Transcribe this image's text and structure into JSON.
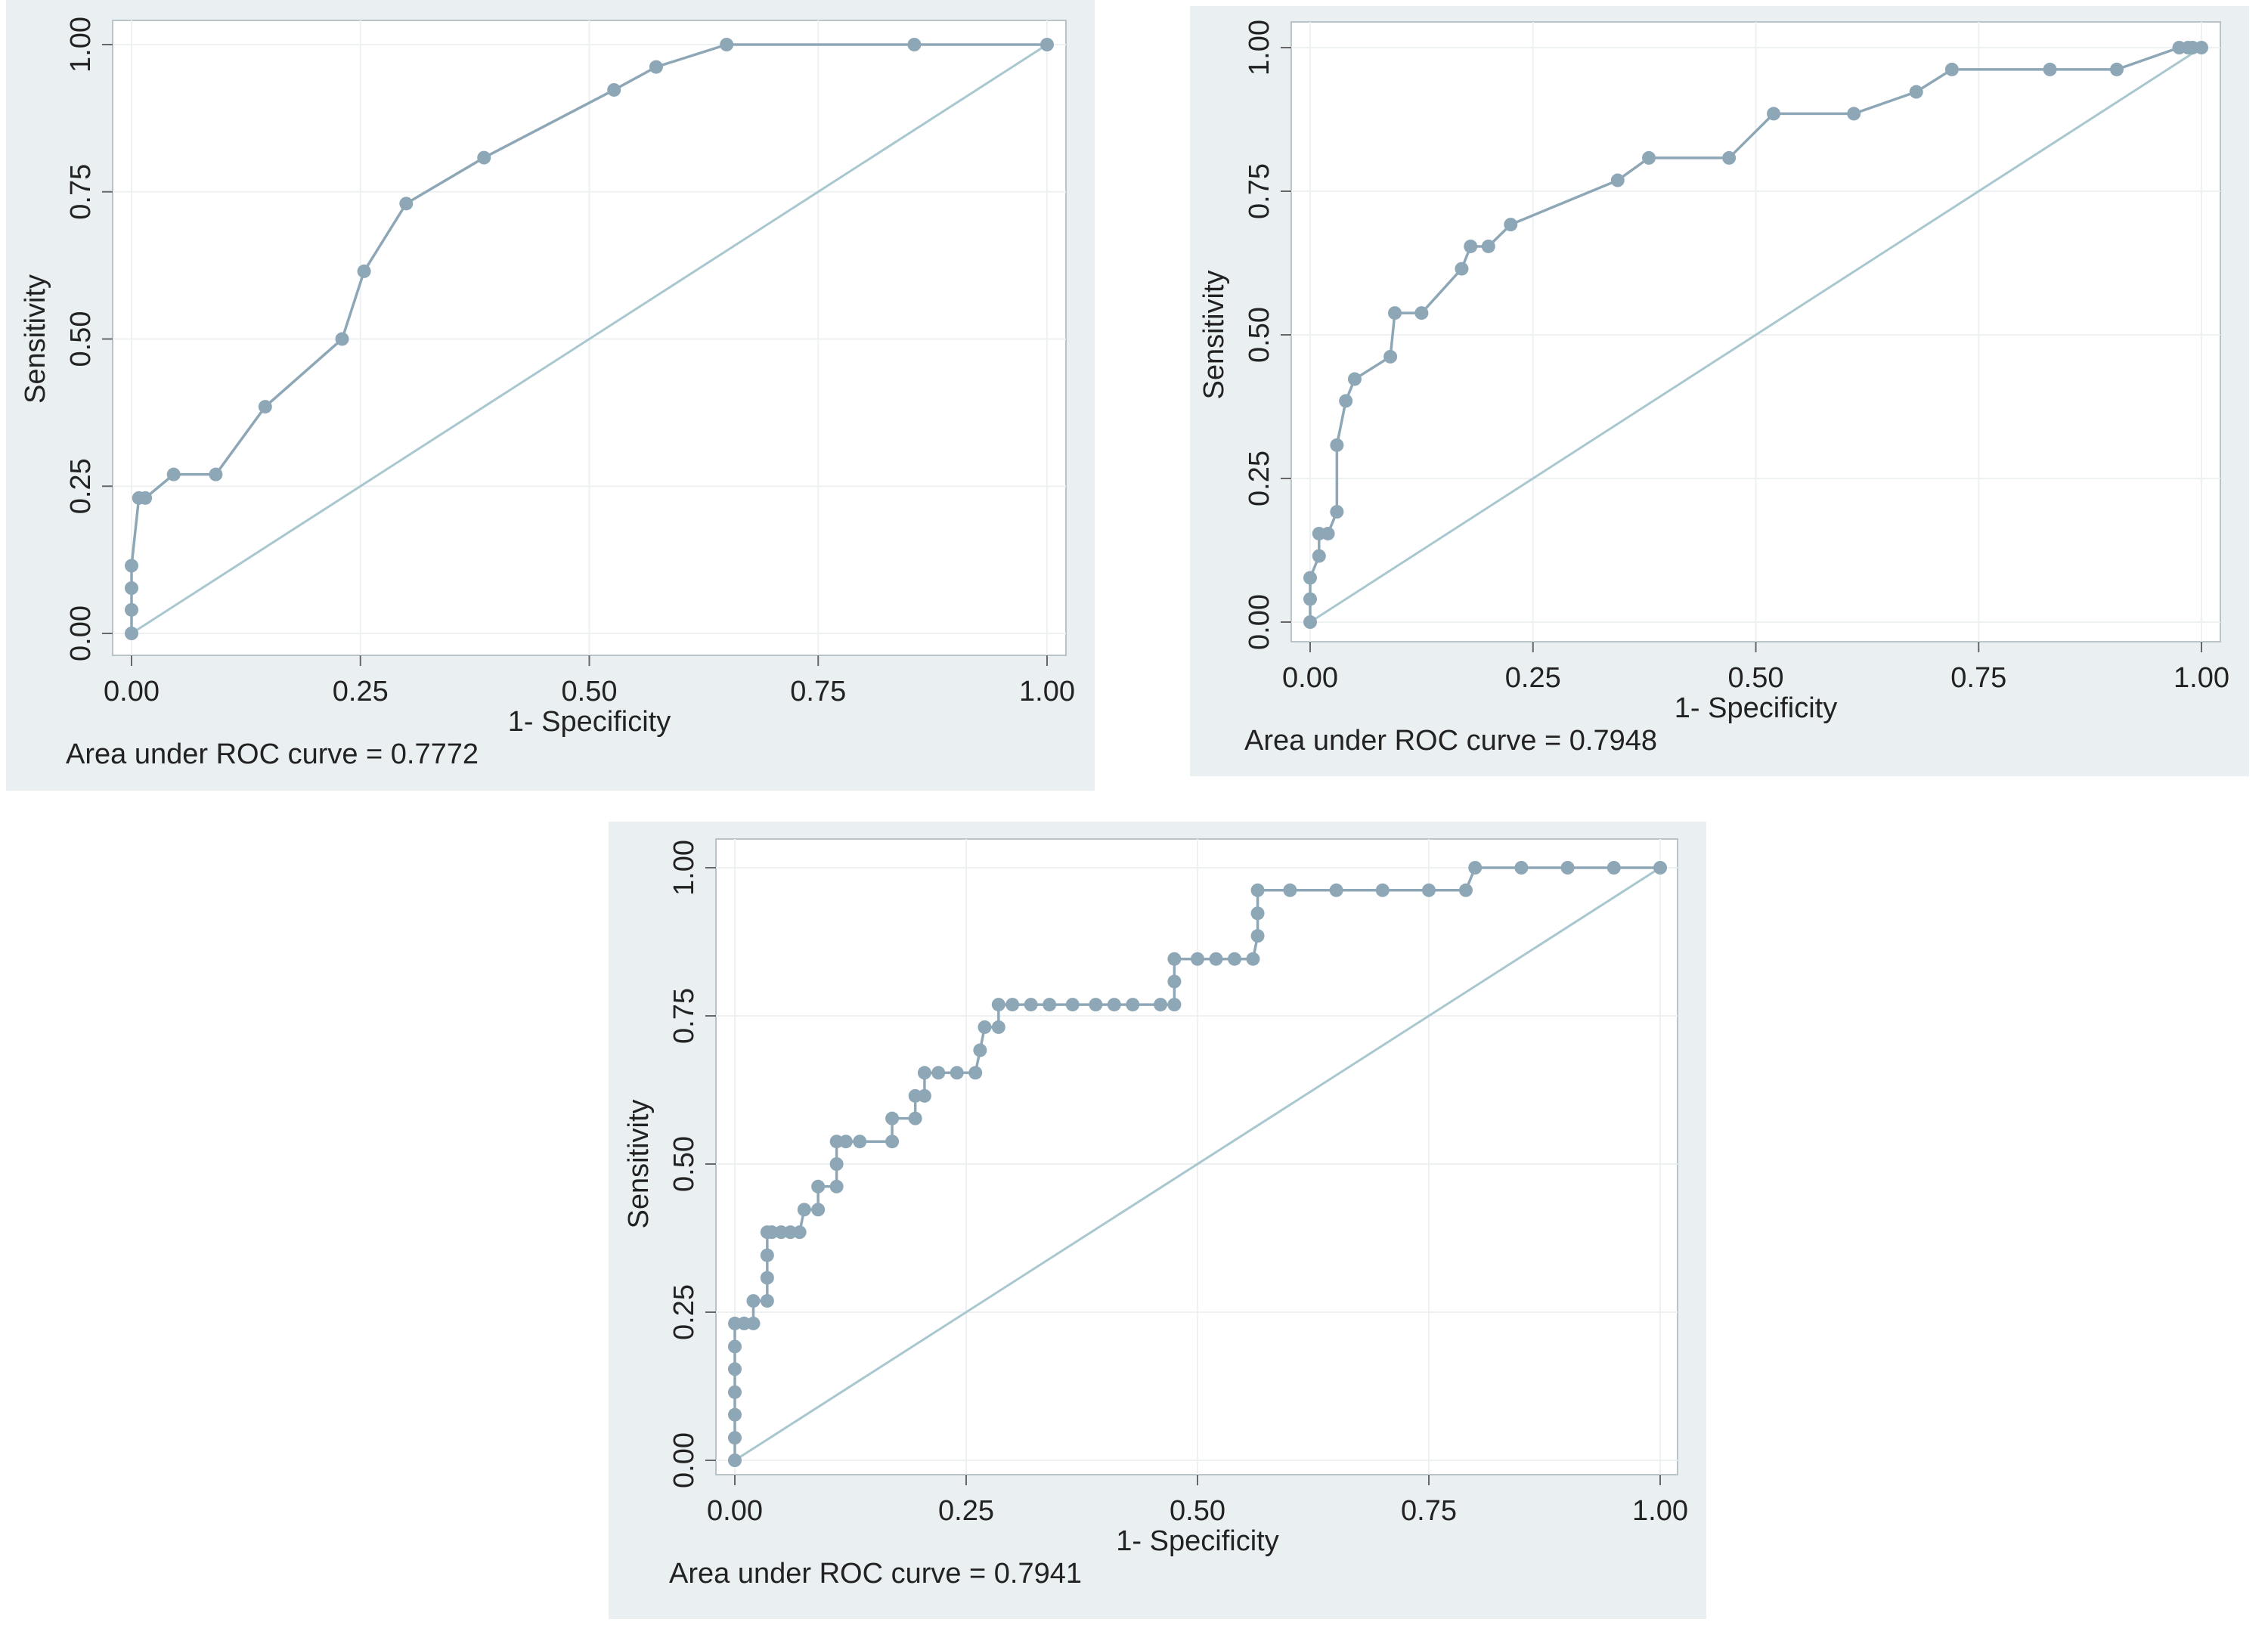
{
  "chart_data": [
    {
      "type": "roc",
      "x_label": "1- Specificity",
      "y_label": "Sensitivity",
      "annotation": "Area under ROC curve = 0.7772",
      "color": "#8ea7b7",
      "diagonal_color": "#a9c7cf",
      "grid": true,
      "diagonal": true,
      "xlim": [
        0,
        1
      ],
      "ylim": [
        0,
        1
      ],
      "xticks": [
        {
          "value": 0,
          "label": "0.00"
        },
        {
          "value": 0.25,
          "label": "0.25"
        },
        {
          "value": 0.5,
          "label": "0.50"
        },
        {
          "value": 0.75,
          "label": "0.75"
        },
        {
          "value": 1,
          "label": "1.00"
        }
      ],
      "yticks": [
        {
          "value": 0,
          "label": "0.00"
        },
        {
          "value": 0.25,
          "label": "0.25"
        },
        {
          "value": 0.5,
          "label": "0.50"
        },
        {
          "value": 0.75,
          "label": "0.75"
        },
        {
          "value": 1,
          "label": "1.00"
        }
      ],
      "x": [
        0,
        0,
        0,
        0,
        0.008,
        0.015,
        0.046,
        0.092,
        0.146,
        0.23,
        0.254,
        0.3,
        0.385,
        0.527,
        0.573,
        0.65,
        0.855,
        1
      ],
      "values": [
        0,
        0.04,
        0.077,
        0.115,
        0.23,
        0.23,
        0.27,
        0.27,
        0.385,
        0.5,
        0.615,
        0.73,
        0.808,
        0.923,
        0.962,
        1,
        1,
        1
      ]
    },
    {
      "type": "roc",
      "x_label": "1- Specificity",
      "y_label": "Sensitivity",
      "annotation": "Area under ROC curve = 0.7948",
      "color": "#8ea7b7",
      "diagonal_color": "#a9c7cf",
      "grid": true,
      "diagonal": true,
      "xlim": [
        0,
        1
      ],
      "ylim": [
        0,
        1
      ],
      "xticks": [
        {
          "value": 0,
          "label": "0.00"
        },
        {
          "value": 0.25,
          "label": "0.25"
        },
        {
          "value": 0.5,
          "label": "0.50"
        },
        {
          "value": 0.75,
          "label": "0.75"
        },
        {
          "value": 1,
          "label": "1.00"
        }
      ],
      "yticks": [
        {
          "value": 0,
          "label": "0.00"
        },
        {
          "value": 0.25,
          "label": "0.25"
        },
        {
          "value": 0.5,
          "label": "0.50"
        },
        {
          "value": 0.75,
          "label": "0.75"
        },
        {
          "value": 1,
          "label": "1.00"
        }
      ],
      "x": [
        0,
        0,
        0,
        0.01,
        0.01,
        0.02,
        0.03,
        0.03,
        0.04,
        0.05,
        0.09,
        0.095,
        0.125,
        0.17,
        0.18,
        0.2,
        0.225,
        0.345,
        0.38,
        0.47,
        0.52,
        0.61,
        0.68,
        0.72,
        0.83,
        0.905,
        0.975,
        0.985,
        0.99,
        1
      ],
      "values": [
        0,
        0.04,
        0.077,
        0.115,
        0.154,
        0.154,
        0.192,
        0.308,
        0.385,
        0.423,
        0.462,
        0.538,
        0.538,
        0.615,
        0.654,
        0.654,
        0.692,
        0.769,
        0.808,
        0.808,
        0.885,
        0.885,
        0.923,
        0.962,
        0.962,
        0.962,
        1,
        1,
        1,
        1
      ]
    },
    {
      "type": "roc",
      "x_label": "1- Specificity",
      "y_label": "Sensitivity",
      "annotation": "Area under ROC curve = 0.7941",
      "color": "#8ea7b7",
      "diagonal_color": "#a9c7cf",
      "grid": true,
      "diagonal": true,
      "xlim": [
        0,
        1
      ],
      "ylim": [
        0,
        1
      ],
      "xticks": [
        {
          "value": 0,
          "label": "0.00"
        },
        {
          "value": 0.25,
          "label": "0.25"
        },
        {
          "value": 0.5,
          "label": "0.50"
        },
        {
          "value": 0.75,
          "label": "0.75"
        },
        {
          "value": 1,
          "label": "1.00"
        }
      ],
      "yticks": [
        {
          "value": 0,
          "label": "0.00"
        },
        {
          "value": 0.25,
          "label": "0.25"
        },
        {
          "value": 0.5,
          "label": "0.50"
        },
        {
          "value": 0.75,
          "label": "0.75"
        },
        {
          "value": 1,
          "label": "1.00"
        }
      ],
      "x": [
        0,
        0,
        0,
        0,
        0,
        0,
        0,
        0.01,
        0.02,
        0.02,
        0.035,
        0.035,
        0.035,
        0.035,
        0.04,
        0.05,
        0.06,
        0.07,
        0.075,
        0.09,
        0.09,
        0.11,
        0.11,
        0.11,
        0.12,
        0.135,
        0.17,
        0.17,
        0.195,
        0.195,
        0.205,
        0.205,
        0.22,
        0.24,
        0.26,
        0.265,
        0.27,
        0.285,
        0.285,
        0.3,
        0.32,
        0.34,
        0.365,
        0.39,
        0.41,
        0.43,
        0.46,
        0.475,
        0.475,
        0.475,
        0.5,
        0.52,
        0.54,
        0.56,
        0.565,
        0.565,
        0.565,
        0.6,
        0.65,
        0.7,
        0.75,
        0.79,
        0.8,
        0.85,
        0.9,
        0.95,
        1
      ],
      "values": [
        0,
        0.038,
        0.077,
        0.115,
        0.154,
        0.192,
        0.231,
        0.231,
        0.231,
        0.269,
        0.269,
        0.308,
        0.346,
        0.385,
        0.385,
        0.385,
        0.385,
        0.385,
        0.423,
        0.423,
        0.462,
        0.462,
        0.5,
        0.538,
        0.538,
        0.538,
        0.538,
        0.577,
        0.577,
        0.615,
        0.615,
        0.654,
        0.654,
        0.654,
        0.654,
        0.692,
        0.731,
        0.731,
        0.769,
        0.769,
        0.769,
        0.769,
        0.769,
        0.769,
        0.769,
        0.769,
        0.769,
        0.769,
        0.808,
        0.846,
        0.846,
        0.846,
        0.846,
        0.846,
        0.885,
        0.923,
        0.962,
        0.962,
        0.962,
        0.962,
        0.962,
        0.962,
        1,
        1,
        1,
        1,
        1
      ]
    }
  ]
}
